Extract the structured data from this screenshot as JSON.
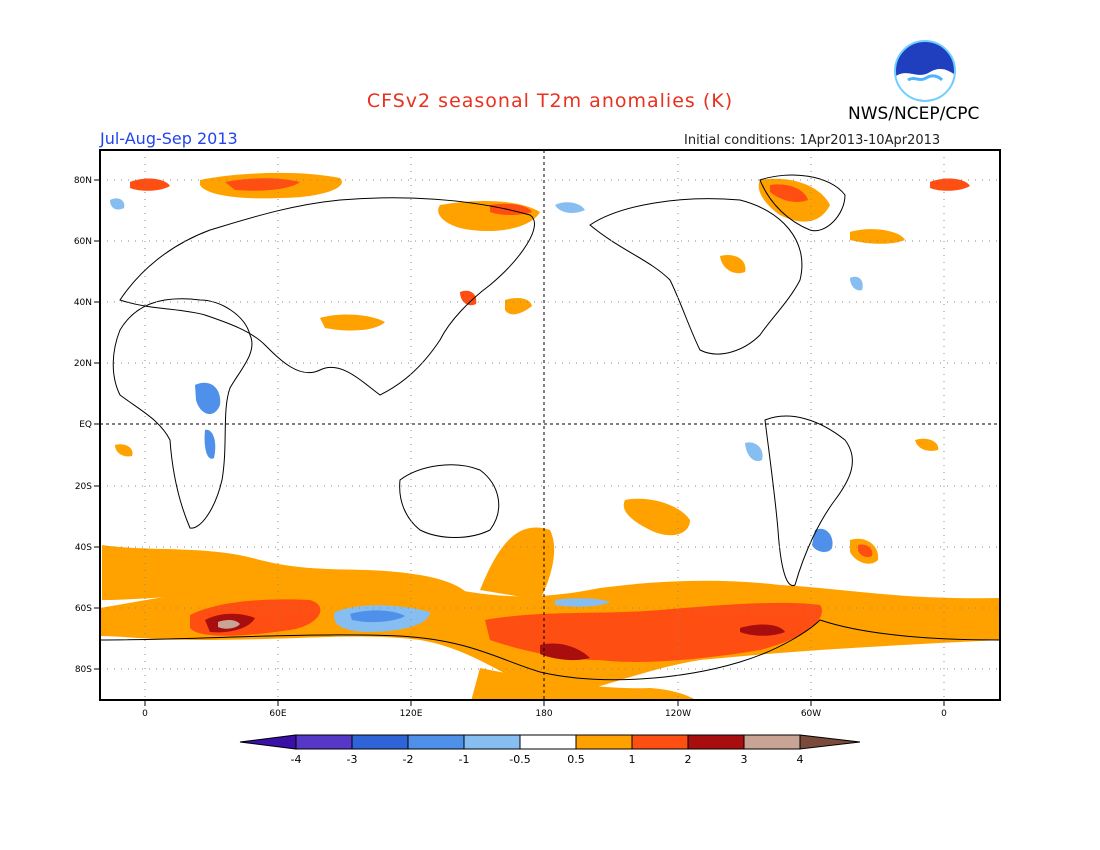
{
  "header": {
    "title": "CFSv2 seasonal T2m anomalies (K)",
    "agency": "NWS/NCEP/CPC",
    "season": "Jul-Aug-Sep 2013",
    "initial_conditions": "Initial conditions: 1Apr2013-10Apr2013",
    "logo_text": "NOAA"
  },
  "map": {
    "lat_labels": [
      "80N",
      "60N",
      "40N",
      "20N",
      "EQ",
      "20S",
      "40S",
      "60S",
      "80S"
    ],
    "lon_labels": [
      "0",
      "60E",
      "120E",
      "180",
      "120W",
      "60W",
      "0"
    ]
  },
  "colorbar": {
    "labels": [
      "-4",
      "-3",
      "-2",
      "-1",
      "-0.5",
      "0.5",
      "1",
      "2",
      "3",
      "4"
    ],
    "colors": [
      "#3a10a8",
      "#5538c8",
      "#2f64d8",
      "#4f90ea",
      "#86bef2",
      "#ffffff",
      "#ffa200",
      "#ff4e12",
      "#a80e0e",
      "#c9a394",
      "#7a4a3a"
    ]
  }
}
